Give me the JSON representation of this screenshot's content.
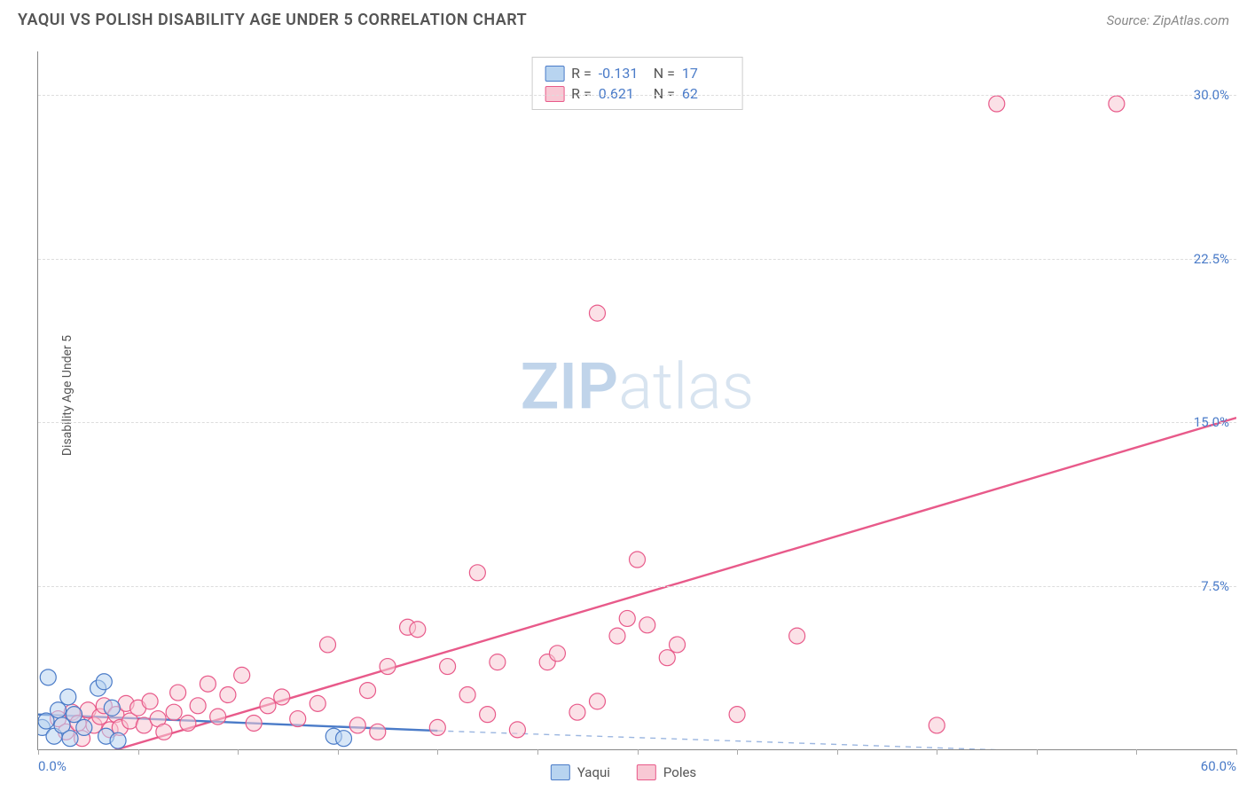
{
  "header": {
    "title": "YAQUI VS POLISH DISABILITY AGE UNDER 5 CORRELATION CHART",
    "source": "Source: ZipAtlas.com"
  },
  "watermark": {
    "zip": "ZIP",
    "atlas": "atlas"
  },
  "axes": {
    "y_label": "Disability Age Under 5",
    "x_min": 0,
    "x_max": 60,
    "y_min": 0,
    "y_max": 32,
    "x_tick_label_min": "0.0%",
    "x_tick_label_max": "60.0%",
    "x_ticks": [
      0,
      5,
      10,
      15,
      20,
      25,
      30,
      35,
      40,
      45,
      50,
      55,
      60
    ],
    "y_gridlines": [
      {
        "value": 7.5,
        "label": "7.5%"
      },
      {
        "value": 15.0,
        "label": "15.0%"
      },
      {
        "value": 22.5,
        "label": "22.5%"
      },
      {
        "value": 30.0,
        "label": "30.0%"
      }
    ]
  },
  "legend": {
    "rows": [
      {
        "swatch_fill": "#b8d4f0",
        "swatch_stroke": "#4a7bc8",
        "r_label": "R =",
        "r_value": "-0.131",
        "n_label": "N =",
        "n_value": "17"
      },
      {
        "swatch_fill": "#f8c8d4",
        "swatch_stroke": "#e85a8a",
        "r_label": "R =",
        "r_value": "0.621",
        "n_label": "N =",
        "n_value": "62"
      }
    ],
    "bottom": [
      {
        "swatch_fill": "#b8d4f0",
        "swatch_stroke": "#4a7bc8",
        "label": "Yaqui"
      },
      {
        "swatch_fill": "#f8c8d4",
        "swatch_stroke": "#e85a8a",
        "label": "Poles"
      }
    ]
  },
  "series": {
    "marker_radius": 9,
    "marker_opacity": 0.55,
    "line_width": 2.4,
    "yaqui": {
      "fill": "#b8d4f0",
      "stroke": "#4a7bc8",
      "trend_solid": {
        "x1": 0,
        "y1": 1.6,
        "x2": 20,
        "y2": 0.85
      },
      "trend_dashed": {
        "x1": 20,
        "y1": 0.85,
        "x2": 60,
        "y2": -0.4
      },
      "points": [
        [
          0.2,
          1.0
        ],
        [
          0.4,
          1.3
        ],
        [
          0.5,
          3.3
        ],
        [
          0.8,
          0.6
        ],
        [
          1.0,
          1.8
        ],
        [
          1.2,
          1.1
        ],
        [
          1.5,
          2.4
        ],
        [
          1.6,
          0.5
        ],
        [
          1.8,
          1.6
        ],
        [
          2.3,
          1.0
        ],
        [
          3.0,
          2.8
        ],
        [
          3.3,
          3.1
        ],
        [
          3.4,
          0.6
        ],
        [
          3.7,
          1.9
        ],
        [
          4.0,
          0.4
        ],
        [
          14.8,
          0.6
        ],
        [
          15.3,
          0.5
        ]
      ]
    },
    "poles": {
      "fill": "#f8c8d4",
      "stroke": "#e85a8a",
      "trend_solid": {
        "x1": 2.5,
        "y1": -0.4,
        "x2": 60,
        "y2": 15.2
      },
      "points": [
        [
          1.0,
          1.4
        ],
        [
          1.4,
          0.8
        ],
        [
          1.7,
          1.7
        ],
        [
          2.0,
          1.2
        ],
        [
          2.2,
          0.5
        ],
        [
          2.5,
          1.8
        ],
        [
          2.8,
          1.1
        ],
        [
          3.1,
          1.5
        ],
        [
          3.3,
          2.0
        ],
        [
          3.6,
          0.9
        ],
        [
          3.9,
          1.6
        ],
        [
          4.1,
          1.0
        ],
        [
          4.4,
          2.1
        ],
        [
          4.6,
          1.3
        ],
        [
          5.0,
          1.9
        ],
        [
          5.3,
          1.1
        ],
        [
          5.6,
          2.2
        ],
        [
          6.0,
          1.4
        ],
        [
          6.3,
          0.8
        ],
        [
          6.8,
          1.7
        ],
        [
          7.0,
          2.6
        ],
        [
          7.5,
          1.2
        ],
        [
          8.0,
          2.0
        ],
        [
          8.5,
          3.0
        ],
        [
          9.0,
          1.5
        ],
        [
          9.5,
          2.5
        ],
        [
          10.2,
          3.4
        ],
        [
          10.8,
          1.2
        ],
        [
          11.5,
          2.0
        ],
        [
          12.2,
          2.4
        ],
        [
          13.0,
          1.4
        ],
        [
          14.0,
          2.1
        ],
        [
          14.5,
          4.8
        ],
        [
          16.0,
          1.1
        ],
        [
          16.5,
          2.7
        ],
        [
          17.0,
          0.8
        ],
        [
          17.5,
          3.8
        ],
        [
          18.5,
          5.6
        ],
        [
          19.0,
          5.5
        ],
        [
          20.0,
          1.0
        ],
        [
          20.5,
          3.8
        ],
        [
          21.5,
          2.5
        ],
        [
          22.0,
          8.1
        ],
        [
          22.5,
          1.6
        ],
        [
          23.0,
          4.0
        ],
        [
          24.0,
          0.9
        ],
        [
          25.5,
          4.0
        ],
        [
          26.0,
          4.4
        ],
        [
          27.0,
          1.7
        ],
        [
          28.0,
          2.2
        ],
        [
          29.0,
          5.2
        ],
        [
          29.5,
          6.0
        ],
        [
          30.0,
          8.7
        ],
        [
          30.5,
          5.7
        ],
        [
          31.5,
          4.2
        ],
        [
          32.0,
          4.8
        ],
        [
          35.0,
          1.6
        ],
        [
          38.0,
          5.2
        ],
        [
          45.0,
          1.1
        ],
        [
          48.0,
          29.6
        ],
        [
          54.0,
          29.6
        ],
        [
          28.0,
          20.0
        ]
      ]
    }
  },
  "colors": {
    "title": "#555555",
    "source": "#888888",
    "tick_label": "#4a7bc8",
    "grid": "#dddddd",
    "axis": "#888888"
  }
}
